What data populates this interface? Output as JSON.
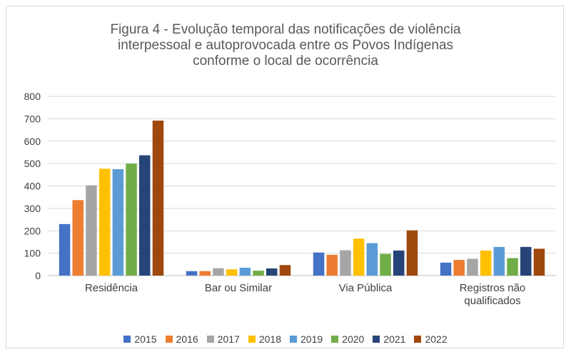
{
  "chart_data": {
    "type": "bar",
    "title_lines": [
      "Figura 4 - Evolução temporal das notificações de violência",
      "interpessoal e autoprovocada entre os Povos Indígenas",
      "conforme o local de ocorrência"
    ],
    "categories": [
      [
        "Residência"
      ],
      [
        "Bar ou Similar"
      ],
      [
        "Via Pública"
      ],
      [
        "Registros não",
        "qualificados"
      ]
    ],
    "ylim": [
      0,
      800
    ],
    "yticks": [
      0,
      100,
      200,
      300,
      400,
      500,
      600,
      700,
      800
    ],
    "grid": true,
    "legend_position": "bottom",
    "series": [
      {
        "name": "2015",
        "color": "#4472C4",
        "values": [
          230,
          20,
          103,
          58
        ]
      },
      {
        "name": "2016",
        "color": "#ED7D31",
        "values": [
          337,
          20,
          93,
          70
        ]
      },
      {
        "name": "2017",
        "color": "#A5A5A5",
        "values": [
          403,
          33,
          113,
          75
        ]
      },
      {
        "name": "2018",
        "color": "#FFC000",
        "values": [
          477,
          28,
          165,
          112
        ]
      },
      {
        "name": "2019",
        "color": "#5B9BD5",
        "values": [
          475,
          35,
          145,
          128
        ]
      },
      {
        "name": "2020",
        "color": "#70AD47",
        "values": [
          500,
          22,
          97,
          78
        ]
      },
      {
        "name": "2021",
        "color": "#264478",
        "values": [
          537,
          32,
          112,
          128
        ]
      },
      {
        "name": "2022",
        "color": "#9E480E",
        "values": [
          692,
          47,
          202,
          120
        ]
      }
    ]
  }
}
